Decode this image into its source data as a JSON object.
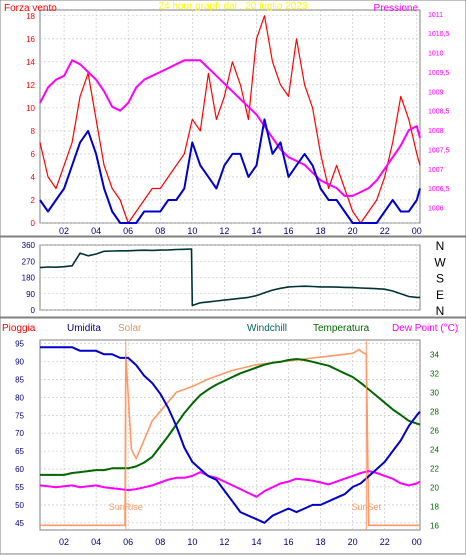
{
  "title": "24 hour graph dal :  20 luglio 2023",
  "colors": {
    "wind": "#ff0000",
    "gust_avg": "#0000cc",
    "pressure": "#ff00ff",
    "direction": "#003333",
    "humidity": "#0000cc",
    "solar": "#ff9966",
    "temperature": "#006600",
    "dewpoint": "#ff00ff",
    "rain": "#ff0000",
    "frame": "#808080",
    "grid": "#c0c0c0"
  },
  "chart_data": [
    {
      "type": "line",
      "panel": "wind-pressure",
      "left_label": "Forza vento",
      "right_label": "Pressione",
      "x_ticks": [
        "02",
        "04",
        "06",
        "08",
        "10",
        "12",
        "14",
        "16",
        "18",
        "20",
        "22",
        "00"
      ],
      "x_range": [
        0.5,
        24.2
      ],
      "ylim": [
        0,
        18.5
      ],
      "y_ticks": [
        0,
        2,
        4,
        6,
        8,
        10,
        12,
        14,
        16,
        18
      ],
      "y2lim": [
        1005.6,
        1011.1
      ],
      "y2_ticks": [
        "1006",
        "1006,5",
        "1007",
        "1007,5",
        "1008",
        "1008,5",
        "1009",
        "1009,5",
        "1010",
        "1010,5",
        "1011"
      ],
      "y2_tick_values": [
        1006,
        1006.5,
        1007,
        1007.5,
        1008,
        1008.5,
        1009,
        1009.5,
        1010,
        1010.5,
        1011
      ],
      "series": [
        {
          "key": "pressure",
          "x": [
            0.5,
            1,
            1.5,
            2,
            2.5,
            3,
            3.5,
            4,
            4.5,
            5,
            5.5,
            6,
            6.5,
            7,
            7.5,
            8,
            8.5,
            9,
            9.5,
            10,
            10.5,
            11,
            11.5,
            12,
            12.5,
            13,
            13.5,
            14,
            14.5,
            15,
            15.5,
            16,
            16.5,
            17,
            17.5,
            18,
            18.5,
            19,
            19.5,
            20,
            20.5,
            21,
            21.5,
            22,
            22.5,
            23,
            23.5,
            24,
            24.2
          ],
          "values": [
            1008.7,
            1009.1,
            1009.3,
            1009.4,
            1009.8,
            1009.7,
            1009.5,
            1009.3,
            1009.0,
            1008.6,
            1008.5,
            1008.7,
            1009.1,
            1009.3,
            1009.4,
            1009.5,
            1009.6,
            1009.7,
            1009.8,
            1009.8,
            1009.8,
            1009.6,
            1009.4,
            1009.2,
            1009.0,
            1008.8,
            1008.6,
            1008.4,
            1008.1,
            1007.8,
            1007.5,
            1007.3,
            1007.2,
            1007.1,
            1006.9,
            1006.7,
            1006.6,
            1006.5,
            1006.3,
            1006.3,
            1006.4,
            1006.5,
            1006.7,
            1007.0,
            1007.3,
            1007.6,
            1008.0,
            1008.1,
            1007.8
          ]
        },
        {
          "key": "wind",
          "x": [
            0.5,
            1,
            1.5,
            2,
            2.5,
            3,
            3.5,
            4,
            4.5,
            5,
            5.5,
            6,
            6.5,
            7,
            7.5,
            8,
            8.5,
            9,
            9.5,
            10,
            10.5,
            11,
            11.5,
            12,
            12.5,
            13,
            13.5,
            14,
            14.5,
            15,
            15.5,
            16,
            16.5,
            17,
            17.5,
            18,
            18.5,
            19,
            19.5,
            20,
            20.5,
            21,
            21.5,
            22,
            22.5,
            23,
            23.5,
            24,
            24.2
          ],
          "values": [
            7,
            4,
            3,
            5,
            7,
            11,
            13,
            9,
            5,
            3,
            2,
            0,
            1,
            2,
            3,
            3,
            4,
            5,
            6,
            9,
            8,
            13,
            9,
            11,
            14,
            12,
            9,
            16,
            18,
            14,
            12,
            11,
            16,
            12,
            10,
            6,
            3,
            5,
            3,
            1,
            0,
            1,
            2,
            4,
            7,
            11,
            9,
            6,
            5
          ]
        },
        {
          "key": "gust_avg",
          "x": [
            0.5,
            1,
            1.5,
            2,
            2.5,
            3,
            3.5,
            4,
            4.5,
            5,
            5.5,
            6,
            6.5,
            7,
            7.5,
            8,
            8.5,
            9,
            9.5,
            10,
            10.5,
            11,
            11.5,
            12,
            12.5,
            13,
            13.5,
            14,
            14.5,
            15,
            15.5,
            16,
            16.5,
            17,
            17.5,
            18,
            18.5,
            19,
            19.5,
            20,
            20.5,
            21,
            21.5,
            22,
            22.5,
            23,
            23.5,
            24,
            24.2
          ],
          "values": [
            2,
            1,
            2,
            3,
            5,
            7,
            8,
            6,
            3,
            1,
            0,
            0,
            0,
            1,
            1,
            1,
            2,
            2,
            3,
            7,
            5,
            4,
            3,
            5,
            6,
            6,
            4,
            5,
            9,
            6,
            7,
            4,
            5,
            6,
            5,
            3,
            2,
            2,
            1,
            0,
            0,
            0,
            0,
            1,
            2,
            1,
            1,
            2,
            3
          ]
        }
      ]
    },
    {
      "type": "line",
      "panel": "wind-direction",
      "x_range": [
        0.5,
        24.2
      ],
      "ylim": [
        0,
        360
      ],
      "y_ticks": [
        0,
        90,
        180,
        270,
        360
      ],
      "direction_labels": [
        "N",
        "W",
        "S",
        "E",
        "N"
      ],
      "series": [
        {
          "key": "direction",
          "x": [
            0.5,
            1,
            1.5,
            2,
            2.5,
            3,
            3.5,
            4,
            4.5,
            5,
            5.5,
            6,
            6.5,
            7,
            7.5,
            8,
            8.5,
            9,
            9.5,
            9.95,
            10.0,
            10.5,
            11,
            11.5,
            12,
            12.5,
            13,
            13.5,
            14,
            14.5,
            15,
            15.5,
            16,
            16.5,
            17,
            17.5,
            18,
            18.5,
            19,
            19.5,
            20,
            20.5,
            21,
            21.5,
            22,
            22.5,
            23,
            23.5,
            24,
            24.2
          ],
          "values": [
            235,
            238,
            237,
            240,
            245,
            315,
            300,
            310,
            325,
            327,
            328,
            328,
            330,
            331,
            330,
            332,
            333,
            335,
            336,
            338,
            25,
            40,
            45,
            50,
            55,
            60,
            65,
            70,
            80,
            95,
            110,
            120,
            128,
            130,
            132,
            130,
            128,
            128,
            127,
            125,
            124,
            122,
            120,
            118,
            115,
            105,
            90,
            75,
            70,
            70
          ]
        }
      ]
    },
    {
      "type": "line",
      "panel": "temperature-humidity",
      "legend": [
        "Pioggia",
        "Umidita",
        "Solar",
        "Windchill",
        "Temperatura",
        "Dew Point (°C)"
      ],
      "x_range": [
        0.5,
        24.2
      ],
      "ylim": [
        43,
        96
      ],
      "y_ticks": [
        45,
        50,
        55,
        60,
        65,
        70,
        75,
        80,
        85,
        90,
        95
      ],
      "y2lim": [
        15.5,
        35.5
      ],
      "y2_ticks": [
        16,
        18,
        20,
        22,
        24,
        26,
        28,
        30,
        32,
        34
      ],
      "annotations": [
        "SunRise",
        "SunSet"
      ],
      "sunrise_x": 5.85,
      "sunset_x": 20.85,
      "series": [
        {
          "key": "humidity",
          "x": [
            0.5,
            1,
            1.5,
            2,
            2.5,
            3,
            3.5,
            4,
            4.5,
            5,
            5.5,
            6,
            6.5,
            7,
            7.5,
            8,
            8.5,
            9,
            9.5,
            10,
            10.5,
            11,
            11.5,
            12,
            12.5,
            13,
            13.5,
            14,
            14.5,
            15,
            15.5,
            16,
            16.5,
            17,
            17.5,
            18,
            18.5,
            19,
            19.5,
            20,
            20.5,
            21,
            21.5,
            22,
            22.5,
            23,
            23.5,
            24,
            24.2
          ],
          "values": [
            94,
            94,
            94,
            94,
            94,
            93,
            93,
            93,
            92,
            92,
            91,
            91,
            89,
            86,
            84,
            81,
            77,
            72,
            66,
            62,
            60,
            58,
            57,
            54,
            51,
            48,
            47,
            46,
            45,
            47,
            48,
            49,
            48,
            49,
            50,
            50,
            51,
            52,
            53,
            55,
            56,
            58,
            60,
            62,
            65,
            68,
            72,
            75,
            76
          ]
        },
        {
          "key": "temperature",
          "x": [
            0.5,
            1,
            1.5,
            2,
            2.5,
            3,
            3.5,
            4,
            4.5,
            5,
            5.5,
            6,
            6.5,
            7,
            7.5,
            8,
            8.5,
            9,
            9.5,
            10,
            10.5,
            11,
            11.5,
            12,
            12.5,
            13,
            13.5,
            14,
            14.5,
            15,
            15.5,
            16,
            16.5,
            17,
            17.5,
            18,
            18.5,
            19,
            19.5,
            20,
            20.5,
            21,
            21.5,
            22,
            22.5,
            23,
            23.5,
            24,
            24.2
          ],
          "values": [
            21.3,
            21.3,
            21.3,
            21.3,
            21.5,
            21.6,
            21.7,
            21.8,
            21.8,
            22.0,
            22.0,
            22.0,
            22.2,
            22.6,
            23.2,
            24.3,
            25.4,
            26.6,
            27.8,
            28.8,
            29.7,
            30.3,
            30.8,
            31.2,
            31.6,
            32.0,
            32.3,
            32.6,
            32.9,
            33.1,
            33.2,
            33.4,
            33.5,
            33.4,
            33.2,
            33.0,
            32.8,
            32.4,
            32.0,
            31.6,
            31.0,
            30.3,
            29.6,
            28.9,
            28.2,
            27.6,
            27.0,
            26.7,
            26.6
          ]
        },
        {
          "key": "dewpoint",
          "x": [
            0.5,
            1,
            1.5,
            2,
            2.5,
            3,
            3.5,
            4,
            4.5,
            5,
            5.5,
            6,
            6.5,
            7,
            7.5,
            8,
            8.5,
            9,
            9.5,
            10,
            10.5,
            11,
            11.5,
            12,
            12.5,
            13,
            13.5,
            14,
            14.5,
            15,
            15.5,
            16,
            16.5,
            17,
            17.5,
            18,
            18.5,
            19,
            19.5,
            20,
            20.5,
            21,
            21.5,
            22,
            22.5,
            23,
            23.5,
            24,
            24.2
          ],
          "values": [
            20.2,
            20.1,
            20.0,
            20.1,
            20.2,
            20.0,
            20.1,
            20.2,
            20.0,
            19.9,
            19.8,
            19.7,
            19.8,
            20.0,
            20.2,
            20.5,
            20.8,
            21.0,
            21.0,
            21.2,
            21.6,
            21.2,
            21.0,
            20.6,
            20.2,
            19.8,
            19.4,
            19.0,
            19.6,
            20.0,
            20.4,
            20.6,
            20.9,
            20.8,
            20.7,
            20.5,
            20.3,
            20.6,
            20.9,
            21.2,
            21.5,
            21.7,
            21.5,
            21.2,
            20.9,
            20.4,
            20.2,
            20.4,
            20.6
          ]
        },
        {
          "key": "solar",
          "x": [
            0.5,
            5.8,
            5.85,
            6.2,
            6.5,
            7,
            7.5,
            8,
            8.5,
            9,
            9.5,
            10,
            10.5,
            11,
            11.5,
            12,
            12.5,
            13,
            13.5,
            14,
            14.5,
            15,
            15.5,
            16,
            16.5,
            17,
            17.5,
            18,
            18.5,
            19,
            19.5,
            20,
            20.2,
            20.4,
            20.6,
            20.85,
            21.0,
            24.2
          ],
          "values": [
            16,
            16,
            34,
            24,
            23,
            25,
            27,
            28,
            29,
            30,
            30.3,
            30.6,
            31.0,
            31.4,
            31.7,
            32.0,
            32.3,
            32.5,
            32.7,
            32.9,
            33.0,
            33.1,
            33.2,
            33.3,
            33.4,
            33.5,
            33.6,
            33.7,
            33.8,
            33.9,
            34.0,
            34.1,
            34.3,
            34.5,
            34.2,
            34.0,
            16,
            16
          ]
        }
      ]
    }
  ]
}
